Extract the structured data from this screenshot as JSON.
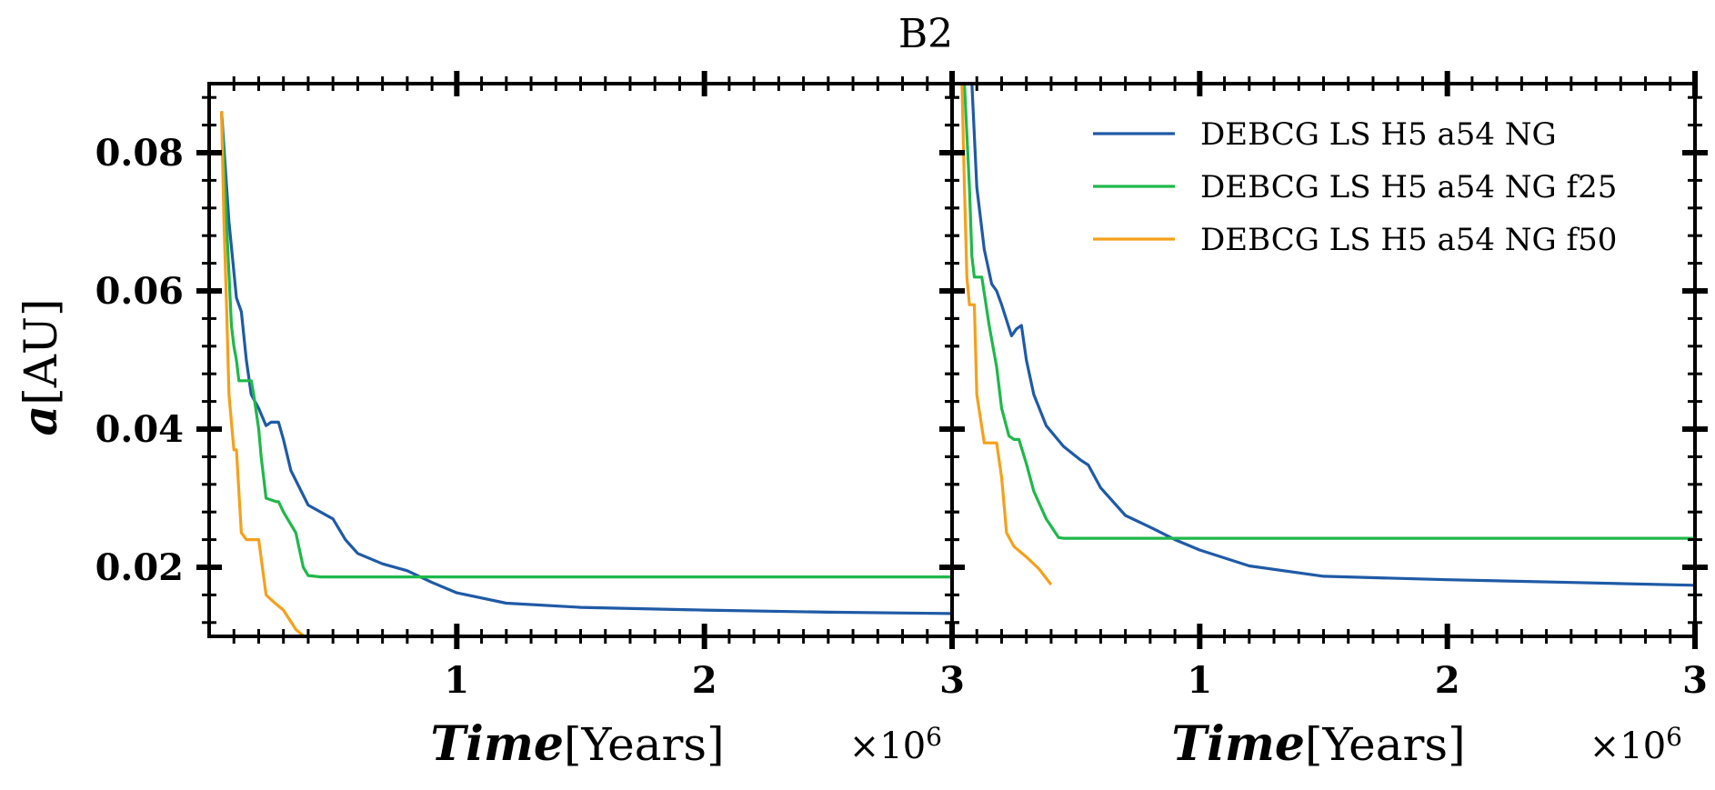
{
  "chart_data": {
    "type": "line",
    "title": "B2",
    "ylabel_symbol": "a",
    "ylabel_unit": "[AU]",
    "xlabel_symbol": "Time",
    "xlabel_unit": "[Years]",
    "x_multiplier": "×10",
    "x_multiplier_exp": "6",
    "x_tick_labels": [
      "1",
      "2",
      "3"
    ],
    "y_tick_labels": [
      "0.02",
      "0.04",
      "0.06",
      "0.08"
    ],
    "xlim": [
      0,
      3000000
    ],
    "ylim": [
      0.01,
      0.09
    ],
    "grid": false,
    "legend_position": "top-right",
    "colors": {
      "blue": "#1f5aa6",
      "green": "#1fb84a",
      "orange": "#f5a01a"
    },
    "legend": [
      {
        "label": "DEBCG LS H5 a54 NG",
        "color": "#1f5aa6"
      },
      {
        "label": "DEBCG LS H5 a54 NG f25",
        "color": "#1fb84a"
      },
      {
        "label": "DEBCG LS H5 a54 NG f50",
        "color": "#f5a01a"
      }
    ],
    "panels": [
      {
        "series": [
          {
            "label": "DEBCG LS H5 a54 NG",
            "color": "#1f5aa6",
            "x": [
              50000,
              80000,
              110000,
              130000,
              150000,
              170000,
              200000,
              230000,
              250000,
              280000,
              300000,
              330000,
              400000,
              500000,
              550000,
              600000,
              700000,
              800000,
              900000,
              1000000,
              1200000,
              1500000,
              2000000,
              2500000,
              3000000
            ],
            "y": [
              0.086,
              0.07,
              0.059,
              0.057,
              0.05,
              0.045,
              0.043,
              0.0405,
              0.041,
              0.041,
              0.0385,
              0.034,
              0.029,
              0.027,
              0.024,
              0.022,
              0.0205,
              0.0195,
              0.0178,
              0.0163,
              0.0148,
              0.0142,
              0.0138,
              0.0135,
              0.0133
            ]
          },
          {
            "label": "DEBCG LS H5 a54 NG f25",
            "color": "#1fb84a",
            "x": [
              50000,
              70000,
              90000,
              100000,
              110000,
              120000,
              150000,
              170000,
              180000,
              200000,
              210000,
              230000,
              270000,
              280000,
              300000,
              350000,
              380000,
              400000,
              450000,
              1000000,
              2000000,
              3000000
            ],
            "y": [
              0.086,
              0.07,
              0.055,
              0.052,
              0.05,
              0.047,
              0.047,
              0.047,
              0.045,
              0.04,
              0.036,
              0.03,
              0.0295,
              0.0295,
              0.028,
              0.025,
              0.02,
              0.0188,
              0.0186,
              0.0186,
              0.0186,
              0.0186
            ]
          },
          {
            "label": "DEBCG LS H5 a54 NG f50",
            "color": "#f5a01a",
            "x": [
              50000,
              60000,
              70000,
              80000,
              100000,
              110000,
              130000,
              150000,
              180000,
              200000,
              230000,
              260000,
              300000,
              350000,
              400000
            ],
            "y": [
              0.086,
              0.07,
              0.058,
              0.045,
              0.037,
              0.037,
              0.025,
              0.024,
              0.024,
              0.024,
              0.016,
              0.015,
              0.0138,
              0.011,
              0.0095
            ]
          }
        ]
      },
      {
        "series": [
          {
            "label": "DEBCG LS H5 a54 NG",
            "color": "#1f5aa6",
            "x": [
              80000,
              100000,
              130000,
              160000,
              180000,
              200000,
              240000,
              260000,
              280000,
              300000,
              330000,
              380000,
              450000,
              520000,
              550000,
              600000,
              700000,
              800000,
              900000,
              1000000,
              1200000,
              1500000,
              2000000,
              2500000,
              3000000
            ],
            "y": [
              0.09,
              0.075,
              0.066,
              0.061,
              0.06,
              0.058,
              0.0535,
              0.0545,
              0.055,
              0.05,
              0.045,
              0.0405,
              0.0375,
              0.0355,
              0.0348,
              0.0315,
              0.0275,
              0.0258,
              0.024,
              0.0225,
              0.0202,
              0.0187,
              0.0182,
              0.0178,
              0.0174
            ]
          },
          {
            "label": "DEBCG LS H5 a54 NG f25",
            "color": "#1fb84a",
            "x": [
              50000,
              70000,
              80000,
              90000,
              110000,
              120000,
              150000,
              180000,
              200000,
              230000,
              250000,
              270000,
              300000,
              330000,
              380000,
              430000,
              450000,
              1000000,
              2000000,
              3000000
            ],
            "y": [
              0.09,
              0.075,
              0.065,
              0.062,
              0.062,
              0.062,
              0.055,
              0.049,
              0.043,
              0.039,
              0.0385,
              0.0385,
              0.035,
              0.031,
              0.027,
              0.0243,
              0.0242,
              0.0242,
              0.0242,
              0.0242
            ]
          },
          {
            "label": "DEBCG LS H5 a54 NG f50",
            "color": "#f5a01a",
            "x": [
              40000,
              50000,
              60000,
              70000,
              80000,
              90000,
              100000,
              130000,
              160000,
              180000,
              200000,
              220000,
              250000,
              300000,
              350000,
              400000
            ],
            "y": [
              0.09,
              0.075,
              0.062,
              0.058,
              0.058,
              0.058,
              0.045,
              0.038,
              0.038,
              0.038,
              0.033,
              0.025,
              0.023,
              0.0215,
              0.0198,
              0.0175
            ]
          }
        ]
      }
    ]
  }
}
